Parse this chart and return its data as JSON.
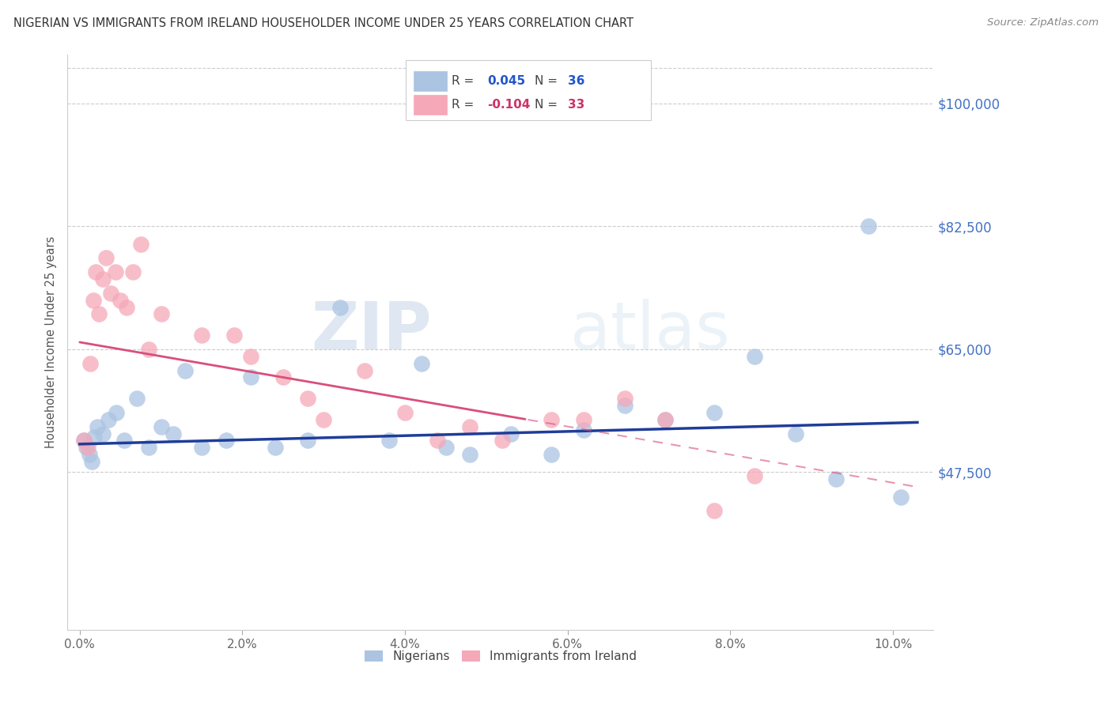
{
  "title": "NIGERIAN VS IMMIGRANTS FROM IRELAND HOUSEHOLDER INCOME UNDER 25 YEARS CORRELATION CHART",
  "source": "Source: ZipAtlas.com",
  "ylabel": "Householder Income Under 25 years",
  "xlabel_ticks": [
    "0.0%",
    "2.0%",
    "4.0%",
    "6.0%",
    "8.0%",
    "10.0%"
  ],
  "xlabel_vals": [
    0.0,
    2.0,
    4.0,
    6.0,
    8.0,
    10.0
  ],
  "ytick_labels": [
    "$47,500",
    "$65,000",
    "$82,500",
    "$100,000"
  ],
  "ytick_vals": [
    47500,
    65000,
    82500,
    100000
  ],
  "ylim": [
    25000,
    107000
  ],
  "xlim": [
    -0.15,
    10.5
  ],
  "blue_R": "0.045",
  "blue_N": "36",
  "pink_R": "-0.104",
  "pink_N": "33",
  "blue_color": "#aac4e2",
  "pink_color": "#f5a8b8",
  "trend_blue": "#1f3d99",
  "trend_pink": "#d94f7a",
  "watermark_zip": "ZIP",
  "watermark_atlas": "atlas",
  "legend_label_blue": "Nigerians",
  "legend_label_pink": "Immigrants from Ireland",
  "blue_points_x": [
    0.05,
    0.08,
    0.12,
    0.15,
    0.18,
    0.22,
    0.28,
    0.35,
    0.45,
    0.55,
    0.7,
    0.85,
    1.0,
    1.15,
    1.3,
    1.5,
    1.8,
    2.1,
    2.4,
    2.8,
    3.2,
    3.8,
    4.2,
    4.5,
    4.8,
    5.3,
    5.8,
    6.2,
    6.7,
    7.2,
    7.8,
    8.3,
    8.8,
    9.3,
    9.7,
    10.1
  ],
  "blue_points_y": [
    52000,
    51000,
    50000,
    49000,
    52500,
    54000,
    53000,
    55000,
    56000,
    52000,
    58000,
    51000,
    54000,
    53000,
    62000,
    51000,
    52000,
    61000,
    51000,
    52000,
    71000,
    52000,
    63000,
    51000,
    50000,
    53000,
    50000,
    53500,
    57000,
    55000,
    56000,
    64000,
    53000,
    46500,
    82500,
    44000
  ],
  "pink_points_x": [
    0.05,
    0.1,
    0.13,
    0.17,
    0.2,
    0.24,
    0.28,
    0.32,
    0.38,
    0.44,
    0.5,
    0.58,
    0.65,
    0.75,
    0.85,
    1.0,
    1.5,
    1.9,
    2.1,
    2.5,
    2.8,
    3.0,
    3.5,
    4.0,
    4.4,
    4.8,
    5.2,
    5.8,
    6.2,
    6.7,
    7.2,
    7.8,
    8.3
  ],
  "pink_points_y": [
    52000,
    51000,
    63000,
    72000,
    76000,
    70000,
    75000,
    78000,
    73000,
    76000,
    72000,
    71000,
    76000,
    80000,
    65000,
    70000,
    67000,
    67000,
    64000,
    61000,
    58000,
    55000,
    62000,
    56000,
    52000,
    54000,
    52000,
    55000,
    55000,
    58000,
    55000,
    42000,
    47000
  ],
  "pink_solid_end_x": 5.5,
  "trend_blue_intercept": 51500,
  "trend_blue_slope": 300,
  "trend_pink_intercept": 66000,
  "trend_pink_slope": -2000
}
